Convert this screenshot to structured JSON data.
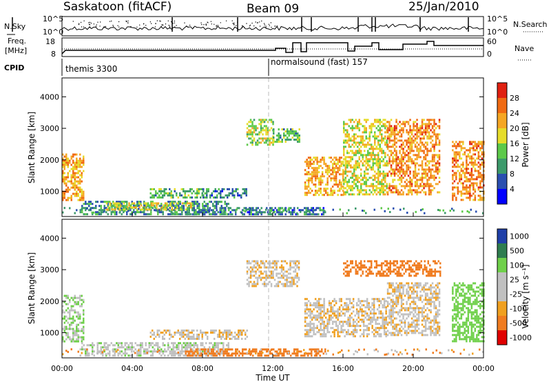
{
  "header": {
    "title": "Saskatoon (fitACF)",
    "beam": "Beam 09",
    "date": "25/Jan/2010"
  },
  "top_panels": {
    "nsky_label": "N.Sky",
    "nsearch_label": "N.Search",
    "freq_label_1": "Freq.",
    "freq_label_2": "[MHz]",
    "nave_label": "Nave",
    "cpid_label": "CPID",
    "nsky_ticks": [
      "10^5",
      "10^0"
    ],
    "nsearch_ticks": [
      "10^5",
      "10^0"
    ],
    "freq_ticks": [
      "18",
      "8"
    ],
    "nave_ticks": [
      "60",
      "0"
    ],
    "cpid_segments": [
      {
        "label": "themis 3300",
        "start_hour": 0
      },
      {
        "label": "normalsound (fast) 157",
        "start_hour": 12
      }
    ]
  },
  "colors": {
    "power_scale": [
      "#0000ff",
      "#2a4fb0",
      "#3c9a6b",
      "#5cc94a",
      "#e6dc2a",
      "#f5a623",
      "#f06a12",
      "#e02010"
    ],
    "velocity_scale": [
      "#e00000",
      "#f07c20",
      "#f0a020",
      "#c0c0c0",
      "#c0c0c0",
      "#6fd04a",
      "#2e7d4f",
      "#1f3fa8"
    ]
  },
  "chart_data": [
    {
      "type": "heatmap",
      "panel": "power",
      "ylabel": "Slant Range [km]",
      "yticks": [
        "1000",
        "2000",
        "3000",
        "4000"
      ],
      "ylim": [
        200,
        4600
      ],
      "xlim_hours": [
        0,
        24
      ],
      "colorbar_label": "Power [dB]",
      "colorbar_ticks": [
        "4",
        "8",
        "12",
        "16",
        "20",
        "24",
        "28"
      ],
      "colorbar_range": [
        0,
        32
      ],
      "echo_regions": [
        {
          "t0": 0.0,
          "t1": 1.2,
          "r0": 700,
          "r1": 2200,
          "level": 22
        },
        {
          "t0": 1.0,
          "t1": 9.5,
          "r0": 300,
          "r1": 700,
          "level": 10
        },
        {
          "t0": 2.5,
          "t1": 7.5,
          "r0": 450,
          "r1": 650,
          "level": 18
        },
        {
          "t0": 5.0,
          "t1": 8.0,
          "r0": 800,
          "r1": 1100,
          "level": 12
        },
        {
          "t0": 8.0,
          "t1": 10.5,
          "r0": 800,
          "r1": 1100,
          "level": 8
        },
        {
          "t0": 7.0,
          "t1": 15.0,
          "r0": 250,
          "r1": 500,
          "level": 8
        },
        {
          "t0": 10.5,
          "t1": 12.0,
          "r0": 2500,
          "r1": 3300,
          "level": 16
        },
        {
          "t0": 12.0,
          "t1": 13.5,
          "r0": 2600,
          "r1": 3000,
          "level": 12
        },
        {
          "t0": 13.8,
          "t1": 16.0,
          "r0": 900,
          "r1": 2100,
          "level": 22
        },
        {
          "t0": 16.0,
          "t1": 18.5,
          "r0": 900,
          "r1": 3300,
          "level": 18
        },
        {
          "t0": 18.5,
          "t1": 21.5,
          "r0": 900,
          "r1": 3300,
          "level": 24
        },
        {
          "t0": 22.2,
          "t1": 24.0,
          "r0": 700,
          "r1": 2600,
          "level": 24
        }
      ]
    },
    {
      "type": "heatmap",
      "panel": "velocity",
      "ylabel": "Slant Range [km]",
      "yticks": [
        "1000",
        "2000",
        "3000",
        "4000"
      ],
      "ylim": [
        200,
        4600
      ],
      "xlim_hours": [
        0,
        24
      ],
      "colorbar_label": "Velocity [m s⁻¹]",
      "colorbar_ticks": [
        "1000",
        "500",
        "100",
        "25",
        "-25",
        "-100",
        "-500",
        "-1000"
      ],
      "echo_regions": [
        {
          "t0": 0.0,
          "t1": 1.2,
          "r0": 700,
          "r1": 2200,
          "vel": 100
        },
        {
          "t0": 1.0,
          "t1": 9.5,
          "r0": 300,
          "r1": 700,
          "vel": 50
        },
        {
          "t0": 5.0,
          "t1": 10.5,
          "r0": 800,
          "r1": 1100,
          "vel": 0
        },
        {
          "t0": 7.0,
          "t1": 15.0,
          "r0": 250,
          "r1": 500,
          "vel": -200
        },
        {
          "t0": 10.5,
          "t1": 13.5,
          "r0": 2500,
          "r1": 3300,
          "vel": 0
        },
        {
          "t0": 13.8,
          "t1": 18.5,
          "r0": 900,
          "r1": 2100,
          "vel": 0
        },
        {
          "t0": 16.0,
          "t1": 21.5,
          "r0": 2800,
          "r1": 3300,
          "vel": -300
        },
        {
          "t0": 18.5,
          "t1": 21.5,
          "r0": 900,
          "r1": 2600,
          "vel": 0
        },
        {
          "t0": 22.2,
          "t1": 24.0,
          "r0": 700,
          "r1": 2600,
          "vel": 200
        }
      ]
    }
  ],
  "xaxis": {
    "ticks": [
      "00:00",
      "04:00",
      "08:00",
      "12:00",
      "16:00",
      "20:00",
      "00:00"
    ],
    "label": "Time UT"
  }
}
